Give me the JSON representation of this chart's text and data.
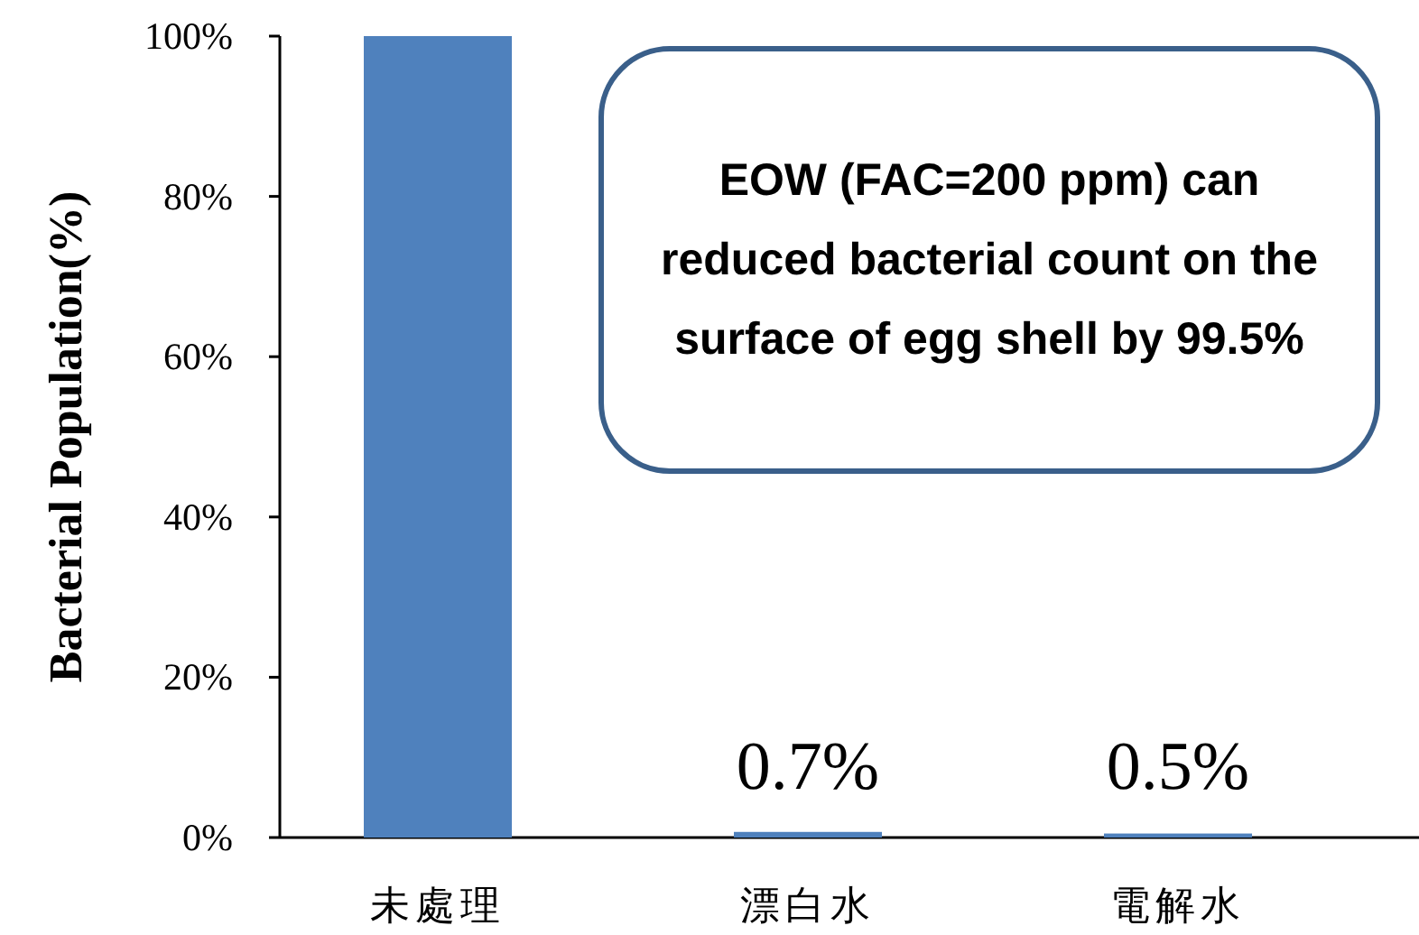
{
  "chart_data": {
    "type": "bar",
    "ylabel": "Bacterial Population(%)",
    "categories": [
      "未處理",
      "漂白水",
      "電解水"
    ],
    "values": [
      100,
      0.7,
      0.5
    ],
    "colors": [
      "#4f81bd",
      "#4f81bd",
      "#4f81bd"
    ],
    "value_labels": [
      null,
      "0.7%",
      "0.5%"
    ],
    "ylim": [
      0,
      100
    ],
    "yticks": [
      {
        "value": 0,
        "label": "0%"
      },
      {
        "value": 20,
        "label": "20%"
      },
      {
        "value": 40,
        "label": "40%"
      },
      {
        "value": 60,
        "label": "60%"
      },
      {
        "value": 80,
        "label": "80%"
      },
      {
        "value": 100,
        "label": "100%"
      }
    ],
    "annotations": [
      "EOW (FAC=200 ppm) can reduced bacterial count on the surface of egg shell by 99.5%"
    ]
  }
}
